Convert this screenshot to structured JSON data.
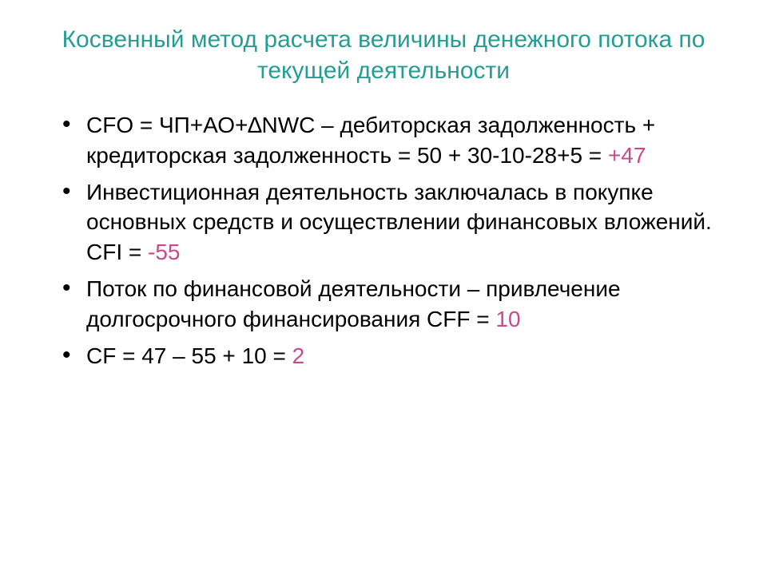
{
  "title_color": "#239e93",
  "accent_color": "#c94a8c",
  "text_color": "#000000",
  "background_color": "#ffffff",
  "title_fontsize": 30,
  "body_fontsize": 28,
  "title": "Косвенный метод расчета величины денежного потока по текущей деятельности",
  "bullets": [
    {
      "text_before": "CFO = ЧП+АО+∆NWC – дебиторская задолженность + кредиторская задолженность = 50 + 30-10-28+5 = ",
      "accent": "+47",
      "text_after": ""
    },
    {
      "text_before": "Инвестиционная деятельность заключалась в покупке основных средств и осуществлении финансовых вложений. CFI = ",
      "accent": "-55",
      "text_after": ""
    },
    {
      "text_before": "Поток по финансовой деятельности – привлечение долгосрочного финансирования CFF = ",
      "accent": "10",
      "text_after": ""
    },
    {
      "text_before": "CF = 47 – 55 + 10 = ",
      "accent": "2",
      "text_after": ""
    }
  ]
}
